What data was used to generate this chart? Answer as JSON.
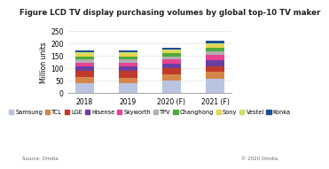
{
  "title": "Figure LCD TV display purchasing volumes by global top-10 TV maker",
  "ylabel": "Million units",
  "categories": [
    "2018",
    "2019",
    "2020 (F)",
    "2021 (F)"
  ],
  "series": {
    "Samsung": [
      40,
      38,
      48,
      58
    ],
    "TCL": [
      22,
      23,
      25,
      28
    ],
    "LGE": [
      28,
      28,
      26,
      22
    ],
    "Hisense": [
      18,
      18,
      20,
      24
    ],
    "Skyworth": [
      14,
      14,
      16,
      22
    ],
    "TPV": [
      13,
      13,
      12,
      13
    ],
    "Changhong": [
      12,
      13,
      12,
      16
    ],
    "Sony": [
      8,
      8,
      8,
      8
    ],
    "Vestel": [
      8,
      8,
      8,
      9
    ],
    "Konka": [
      7,
      8,
      8,
      10
    ]
  },
  "colors": {
    "Samsung": "#b8c4e0",
    "TCL": "#d4864a",
    "LGE": "#c0392b",
    "Hisense": "#6b3fa0",
    "Skyworth": "#e84393",
    "TPV": "#b0b0b0",
    "Changhong": "#4eaa3a",
    "Sony": "#e8d44d",
    "Vestel": "#c8e06c",
    "Konka": "#1f4e96"
  },
  "ylim": [
    0,
    250
  ],
  "yticks": [
    0,
    50,
    100,
    150,
    200,
    250
  ],
  "source": "Source: Omdia",
  "copyright": "© 2020 Omdia",
  "background_color": "#ffffff",
  "title_fontsize": 6.2,
  "axis_fontsize": 5.5,
  "legend_fontsize": 4.8
}
